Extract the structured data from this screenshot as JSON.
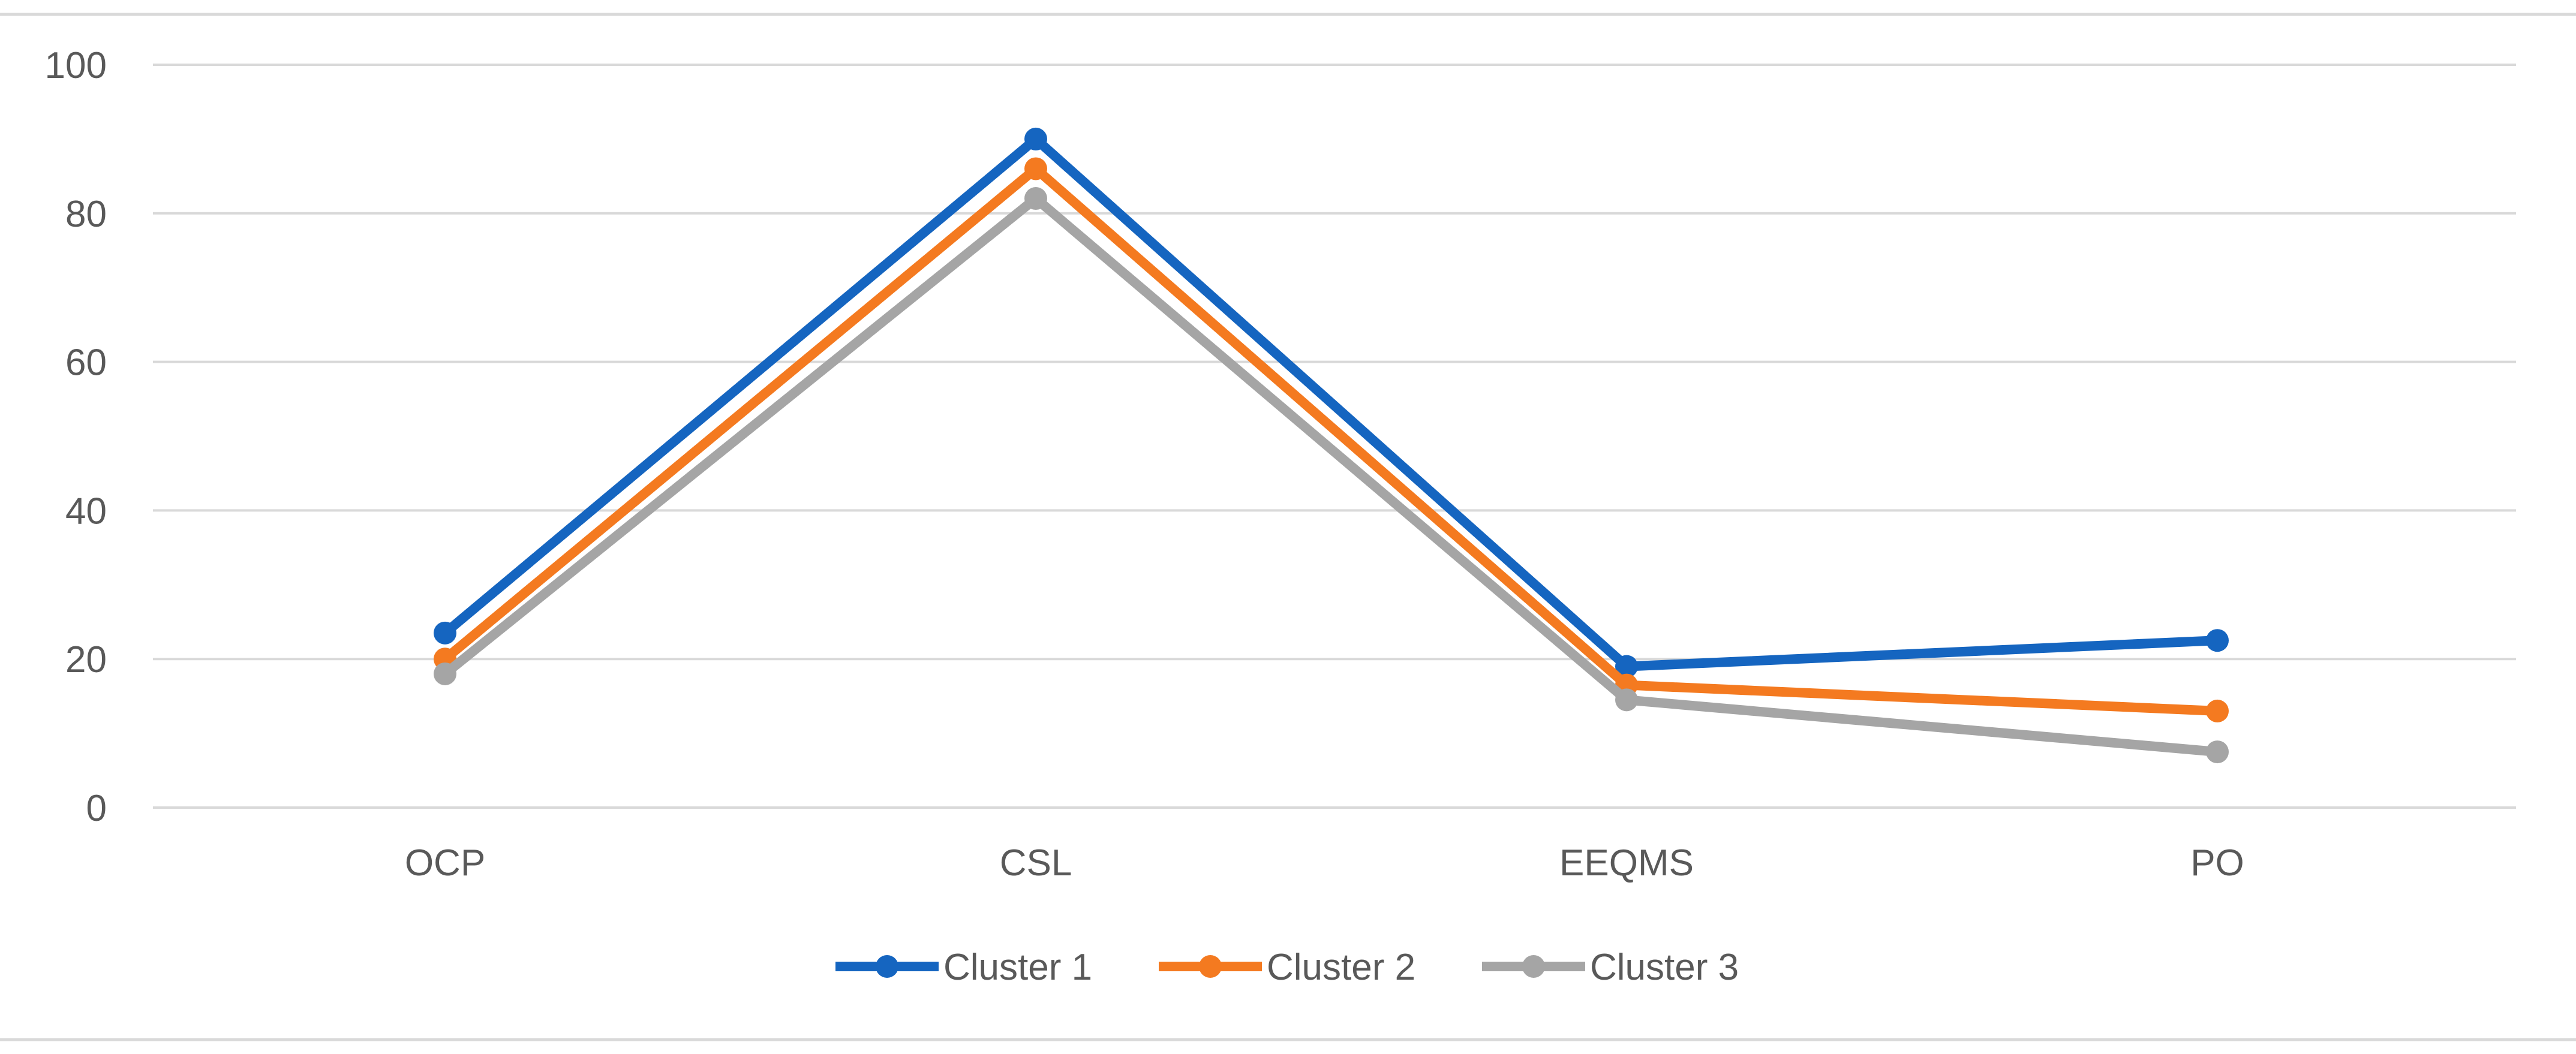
{
  "chart_data": {
    "type": "line",
    "title": "",
    "xlabel": "",
    "ylabel": "",
    "categories": [
      "OCP",
      "CSL",
      "EEQMS",
      "PO"
    ],
    "ylim": [
      0,
      100
    ],
    "yticks": [
      0,
      20,
      40,
      60,
      80,
      100
    ],
    "grid": true,
    "legend_position": "bottom",
    "series": [
      {
        "name": "Cluster 1",
        "color": "#1565c0",
        "values": [
          23.5,
          90,
          19,
          22.5
        ]
      },
      {
        "name": "Cluster 2",
        "color": "#f47a20",
        "values": [
          20,
          86,
          16.5,
          13
        ]
      },
      {
        "name": "Cluster 3",
        "color": "#a5a5a5",
        "values": [
          18,
          82,
          14.5,
          7.5
        ]
      }
    ]
  }
}
